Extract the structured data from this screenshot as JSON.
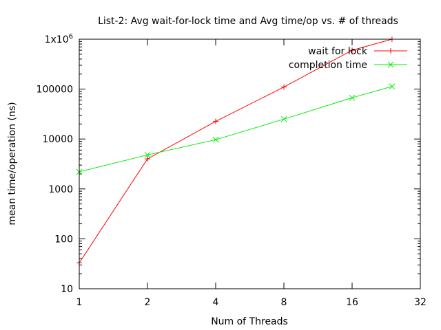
{
  "chart_data": {
    "type": "line",
    "title": "List-2: Avg wait-for-lock time and Avg time/op vs. # of threads",
    "xlabel": "Num of Threads",
    "ylabel": "mean time/operation (ns)",
    "xscale": "log2",
    "yscale": "log10",
    "xlim": [
      1,
      32
    ],
    "ylim": [
      10,
      1000000
    ],
    "xticks": [
      1,
      2,
      4,
      8,
      16,
      32
    ],
    "xtick_labels": [
      "1",
      "2",
      "4",
      "8",
      "16",
      "32"
    ],
    "yticks": [
      10,
      100,
      1000,
      10000,
      100000,
      1000000
    ],
    "ytick_labels": [
      "10",
      "100",
      "1000",
      "10000",
      "100000",
      "1x10"
    ],
    "ytick_top_exponent": "6",
    "grid": false,
    "legend_position": "top-right",
    "series": [
      {
        "name": "wait for lock",
        "color": "#ff0000",
        "marker": "plus",
        "x": [
          1,
          2,
          4,
          8,
          16,
          24
        ],
        "y": [
          33,
          4000,
          22500,
          110000,
          600000,
          1000000
        ]
      },
      {
        "name": "completion time",
        "color": "#00ee00",
        "marker": "cross",
        "x": [
          1,
          2,
          4,
          8,
          16,
          24
        ],
        "y": [
          2200,
          4800,
          9700,
          25000,
          67000,
          113000
        ]
      }
    ]
  }
}
